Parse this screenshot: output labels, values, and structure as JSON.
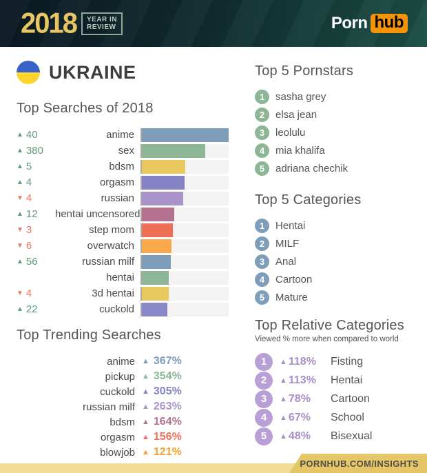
{
  "header": {
    "year": "2018",
    "badge_line1": "YEAR IN",
    "badge_line2": "REVIEW",
    "logo_porn": "Porn",
    "logo_hub": "hub",
    "accent_gold": "#e8c661",
    "accent_orange": "#f79307"
  },
  "country": {
    "name": "UKRAINE",
    "flag_top_color": "#3a63c9",
    "flag_bottom_color": "#ffd42d"
  },
  "chart_data": [
    {
      "type": "bar",
      "title": "Top Searches of 2018",
      "orientation": "horizontal",
      "xlim": [
        0,
        100
      ],
      "grid": false,
      "note": "values are relative bar lengths in percent of track; change = rank change vs prior year",
      "rows": [
        {
          "term": "anime",
          "change": 40,
          "direction": "up",
          "value_pct": 100,
          "color": "#7e9db8"
        },
        {
          "term": "sex",
          "change": 380,
          "direction": "up",
          "value_pct": 73,
          "color": "#8cb696"
        },
        {
          "term": "bdsm",
          "change": 5,
          "direction": "up",
          "value_pct": 50,
          "color": "#e9c95f"
        },
        {
          "term": "orgasm",
          "change": 4,
          "direction": "up",
          "value_pct": 49,
          "color": "#8583c6"
        },
        {
          "term": "russian",
          "change": 4,
          "direction": "down",
          "value_pct": 48,
          "color": "#a893cb"
        },
        {
          "term": "hentai uncensored",
          "change": 12,
          "direction": "up",
          "value_pct": 37,
          "color": "#b3718f"
        },
        {
          "term": "step mom",
          "change": 3,
          "direction": "down",
          "value_pct": 36,
          "color": "#ee6e55"
        },
        {
          "term": "overwatch",
          "change": 6,
          "direction": "down",
          "value_pct": 34,
          "color": "#f9a94c"
        },
        {
          "term": "russian milf",
          "change": 56,
          "direction": "up",
          "value_pct": 33,
          "color": "#7e9db8"
        },
        {
          "term": "hentai",
          "change": null,
          "direction": "none",
          "value_pct": 31,
          "color": "#8cb696"
        },
        {
          "term": "3d hentai",
          "change": 4,
          "direction": "down",
          "value_pct": 31,
          "color": "#e9c95f"
        },
        {
          "term": "cuckold",
          "change": 22,
          "direction": "up",
          "value_pct": 29,
          "color": "#8787c9"
        }
      ],
      "up_color": "#5f9b77",
      "down_color": "#f0765c"
    },
    {
      "type": "table",
      "title": "Top Trending Searches",
      "rows": [
        {
          "term": "anime",
          "pct": "367%",
          "color": "#7e9db8"
        },
        {
          "term": "pickup",
          "pct": "354%",
          "color": "#8cb696"
        },
        {
          "term": "cuckold",
          "pct": "305%",
          "color": "#8583c6"
        },
        {
          "term": "russian milf",
          "pct": "263%",
          "color": "#a893cb"
        },
        {
          "term": "bdsm",
          "pct": "164%",
          "color": "#b3718f"
        },
        {
          "term": "orgasm",
          "pct": "156%",
          "color": "#ee7157"
        },
        {
          "term": "blowjob",
          "pct": "121%",
          "color": "#f9a030"
        }
      ]
    }
  ],
  "pornstars": {
    "title": "Top 5 Pornstars",
    "badge_color": "#8cb696",
    "items": [
      "sasha grey",
      "elsa jean",
      "leolulu",
      "mia khalifa",
      "adriana chechik"
    ]
  },
  "categories": {
    "title": "Top 5 Categories",
    "badge_color": "#7e9db8",
    "items": [
      "Hentai",
      "MILF",
      "Anal",
      "Cartoon",
      "Mature"
    ]
  },
  "relative": {
    "title": "Top Relative Categories",
    "subtitle": "Viewed % more when compared to world",
    "badge_color": "#b89fd6",
    "pct_color": "#a98fc7",
    "items": [
      {
        "pct": "118%",
        "label": "Fisting"
      },
      {
        "pct": "113%",
        "label": "Hentai"
      },
      {
        "pct": "78%",
        "label": "Cartoon"
      },
      {
        "pct": "67%",
        "label": "School"
      },
      {
        "pct": "48%",
        "label": "Bisexual"
      }
    ]
  },
  "footer": {
    "text": "PORNHUB.COM/INSIGHTS"
  },
  "glyphs": {
    "up_triangle": "▲",
    "down_triangle": "▼"
  }
}
